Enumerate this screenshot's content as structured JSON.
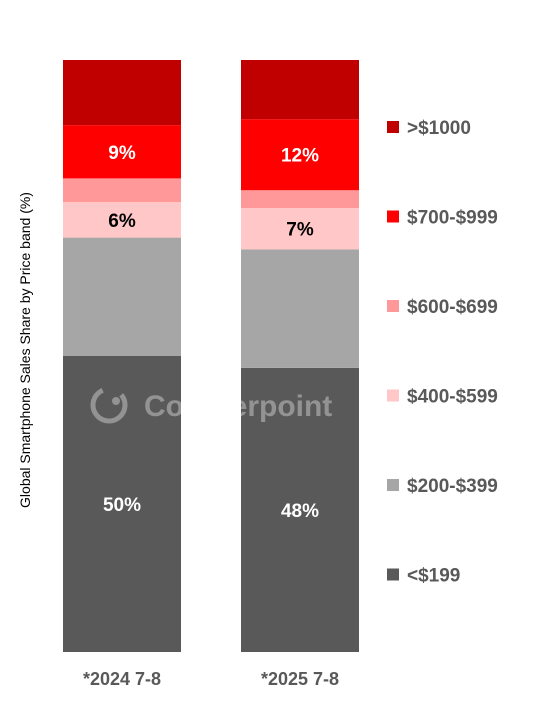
{
  "chart_data": {
    "type": "bar",
    "stacked": true,
    "normalized_percent": true,
    "ylabel": "Global Smartphone Sales Share by Price band (%)",
    "categories": [
      "*2024 7-8",
      "*2025 7-8"
    ],
    "series": [
      {
        "name": "<$199",
        "color": "#595959",
        "values": [
          50,
          48
        ],
        "labels": [
          "50%",
          "48%"
        ],
        "label_color": "#ffffff"
      },
      {
        "name": "$200-$399",
        "color": "#a6a6a6",
        "values": [
          20,
          20
        ],
        "labels": [
          "",
          ""
        ],
        "label_color": "#000000"
      },
      {
        "name": "$400-$599",
        "color": "#ffc7c7",
        "values": [
          6,
          7
        ],
        "labels": [
          "6%",
          "7%"
        ],
        "label_color": "#000000"
      },
      {
        "name": "$600-$699",
        "color": "#ff9999",
        "values": [
          4,
          3
        ],
        "labels": [
          "",
          ""
        ],
        "label_color": "#000000"
      },
      {
        "name": "$700-$999",
        "color": "#ff0000",
        "values": [
          9,
          12
        ],
        "labels": [
          "9%",
          "12%"
        ],
        "label_color": "#ffffff"
      },
      {
        "name": ">$1000",
        "color": "#c00000",
        "values": [
          11,
          10
        ],
        "labels": [
          "",
          ""
        ],
        "label_color": "#ffffff"
      }
    ],
    "legend_position": "right",
    "ylim": [
      0,
      100
    ],
    "grid": false
  },
  "watermark": {
    "text": "Counterpoint",
    "icon": "counterpoint-logo-icon"
  }
}
